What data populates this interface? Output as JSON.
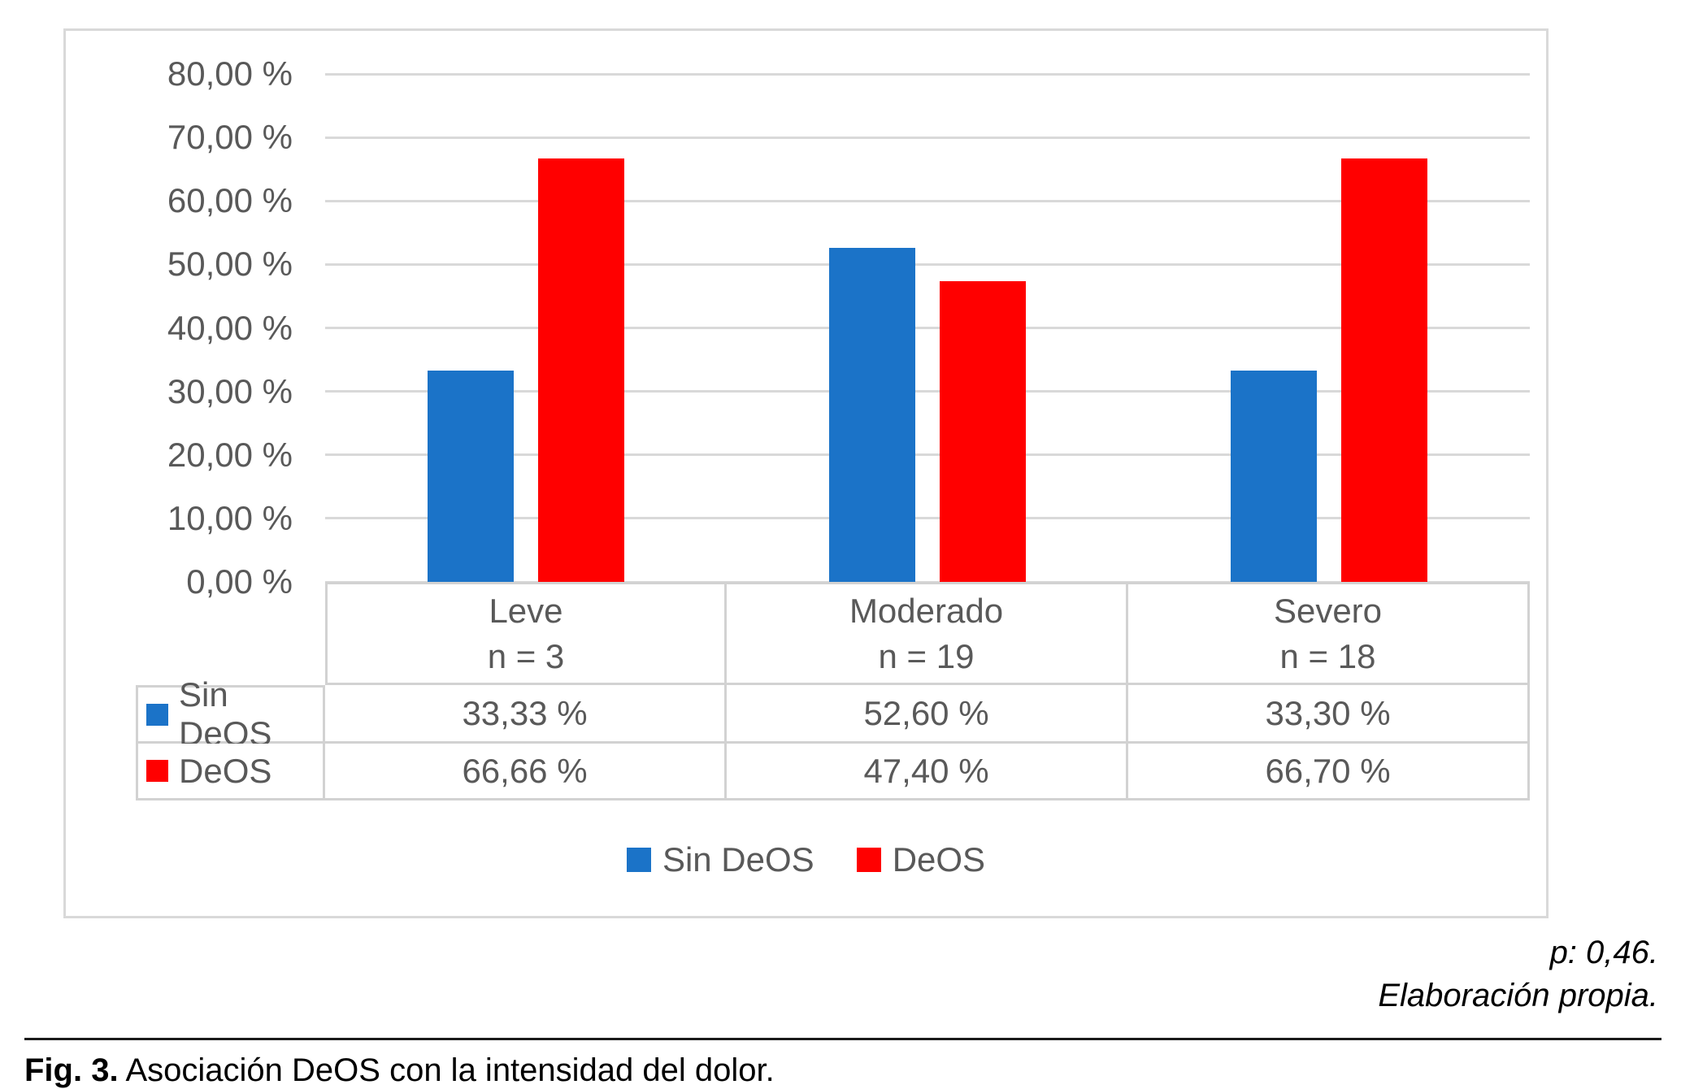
{
  "chart_data": {
    "type": "bar",
    "categories": [
      "Leve",
      "Moderado",
      "Severo"
    ],
    "category_sublabels": [
      "n = 3",
      "n = 19",
      "n = 18"
    ],
    "series": [
      {
        "name": "Sin DeOS",
        "color": "#1b73c8",
        "values": [
          33.33,
          52.6,
          33.3
        ],
        "labels": [
          "33,33 %",
          "52,60 %",
          "33,30 %"
        ]
      },
      {
        "name": "DeOS",
        "color": "#ff0000",
        "values": [
          66.66,
          47.4,
          66.7
        ],
        "labels": [
          "66,66 %",
          "47,40 %",
          "66,70 %"
        ]
      }
    ],
    "ylim": [
      0,
      80
    ],
    "ytick_step": 10,
    "ytick_labels": [
      "0,00 %",
      "10,00 %",
      "20,00 %",
      "30,00 %",
      "40,00 %",
      "50,00 %",
      "60,00 %",
      "70,00 %",
      "80,00 %"
    ],
    "grid": true,
    "legend_position": "bottom",
    "data_table": true,
    "gridline_color": "#d9d9d9",
    "text_color": "#595959"
  },
  "footnotes": {
    "p_value": "p: 0,46.",
    "source": "Elaboración propia."
  },
  "caption": {
    "label": "Fig. 3.",
    "text": "Asociación DeOS con la intensidad del dolor."
  }
}
